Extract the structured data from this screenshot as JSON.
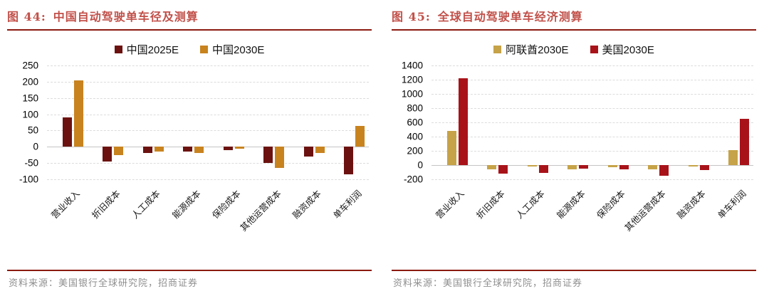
{
  "colors": {
    "title_red": "#C15049",
    "rule_dark_red": "#8B1A10",
    "china_2025": "#6B1210",
    "china_2030": "#C8831F",
    "uae_2030": "#C6A348",
    "us_2030": "#A8131A",
    "gridline": "#DCDCDC",
    "source_gray": "#8F8F8F"
  },
  "panels": [
    {
      "figure_label": "图 44:",
      "title": "中国自动驾驶单车径及测算",
      "source_prefix": "资料来源：",
      "source_text": "美国银行全球研究院，招商证券"
    },
    {
      "figure_label": "图 45:",
      "title": "全球自动驾驶单车经济测算",
      "source_prefix": "资料来源：",
      "source_text": "美国银行全球研究院，招商证券"
    }
  ],
  "chart_data": [
    {
      "type": "bar",
      "title": "中国自动驾驶单车径及测算",
      "categories": [
        "营业收入",
        "折旧成本",
        "人工成本",
        "能源成本",
        "保险成本",
        "其他运营成本",
        "融资成本",
        "单车利润"
      ],
      "series": [
        {
          "name": "中国2025E",
          "color": "#6B1210",
          "values": [
            90,
            -45,
            -20,
            -15,
            -10,
            -50,
            -30,
            -85
          ]
        },
        {
          "name": "中国2030E",
          "color": "#C8831F",
          "values": [
            205,
            -25,
            -15,
            -20,
            -5,
            -65,
            -20,
            65
          ]
        }
      ],
      "ylim": [
        -100,
        250
      ],
      "yticks": [
        250,
        200,
        150,
        100,
        50,
        0,
        -50,
        -100
      ],
      "grid": true,
      "legend_position": "top"
    },
    {
      "type": "bar",
      "title": "全球自动驾驶单车经济测算",
      "categories": [
        "营业收入",
        "折旧成本",
        "人工成本",
        "能源成本",
        "保险成本",
        "其他运营成本",
        "融资成本",
        "单车利润"
      ],
      "series": [
        {
          "name": "阿联酋2030E",
          "color": "#C6A348",
          "values": [
            480,
            -55,
            -10,
            -55,
            -25,
            -55,
            -20,
            210
          ]
        },
        {
          "name": "美国2030E",
          "color": "#A8131A",
          "values": [
            1220,
            -115,
            -105,
            -45,
            -55,
            -150,
            -70,
            650
          ]
        }
      ],
      "ylim": [
        -200,
        1400
      ],
      "yticks": [
        1400,
        1200,
        1000,
        800,
        600,
        400,
        200,
        0,
        -200
      ],
      "grid": true,
      "legend_position": "top"
    }
  ]
}
